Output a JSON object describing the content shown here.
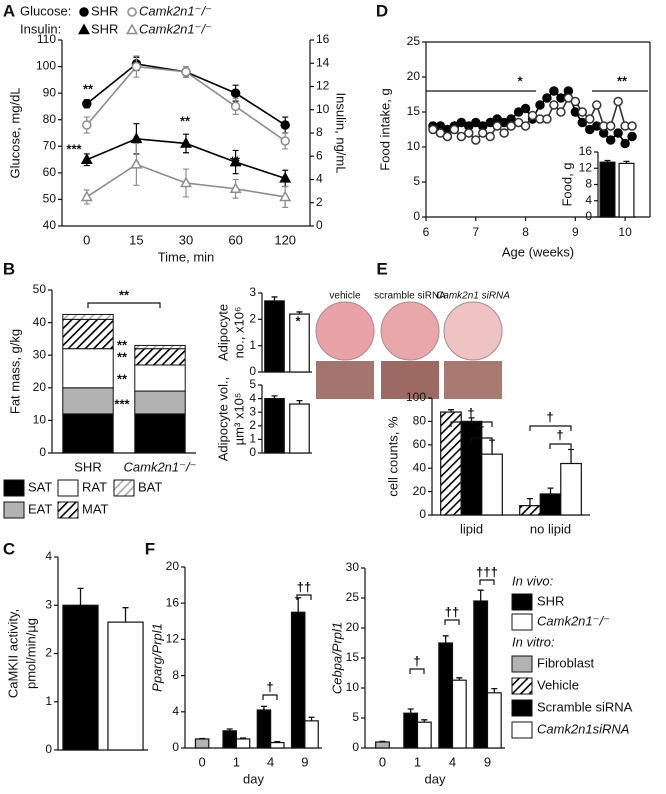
{
  "chart_data": [
    {
      "type": "line",
      "panel": "A",
      "xlabel": "Time, min",
      "ylabel": [
        "Glucose, mg/dL"
      ],
      "y2label": [
        "Insulin, ng/mL"
      ],
      "categories": [
        "0",
        "15",
        "30",
        "60",
        "120"
      ],
      "ylim": [
        40,
        110
      ],
      "yticks": [
        40,
        50,
        60,
        70,
        80,
        90,
        100,
        110
      ],
      "y2lim": [
        0,
        16
      ],
      "y2ticks": [
        0,
        2,
        4,
        6,
        8,
        10,
        12,
        14,
        16
      ],
      "legend_titles": [
        "Glucose:",
        "Insulin:"
      ],
      "series": [
        {
          "name": "SHR",
          "color": "#000000",
          "marker": "circle",
          "fill": "#000000",
          "values": [
            86,
            101,
            98,
            90,
            78
          ],
          "errors": [
            1.5,
            2.5,
            2,
            3,
            3
          ]
        },
        {
          "name": "Camk2n1⁻/⁻",
          "color": "#8c8c8c",
          "marker": "circle",
          "fill": "#ffffff",
          "values": [
            78,
            100,
            98,
            85,
            72
          ],
          "errors": [
            3,
            4,
            2,
            3,
            3
          ]
        },
        {
          "name": "SHR",
          "color": "#000000",
          "marker": "triangle",
          "fill": "#000000",
          "axis": "y2",
          "values": [
            5.7,
            7.5,
            7.1,
            5.5,
            4.1
          ],
          "errors": [
            0.5,
            1.3,
            0.8,
            1,
            0.7
          ]
        },
        {
          "name": "Camk2n1⁻/⁻",
          "color": "#8c8c8c",
          "marker": "triangle",
          "fill": "#ffffff",
          "axis": "y2",
          "values": [
            2.5,
            5.3,
            3.7,
            3.2,
            2.5
          ],
          "errors": [
            0.6,
            1.8,
            1.2,
            0.8,
            0.9
          ]
        }
      ],
      "annotations": [
        "**",
        "***",
        "**",
        "**"
      ]
    },
    {
      "type": "line",
      "panel": "D",
      "xlabel": "Age (weeks)",
      "ylabel": [
        "Food intake, g"
      ],
      "xlim": [
        6,
        10.5
      ],
      "xticks": [
        6,
        7,
        8,
        9,
        10
      ],
      "ylim": [
        0,
        25
      ],
      "yticks": [
        0,
        5,
        10,
        15,
        20,
        25
      ],
      "x": [
        6.14,
        6.29,
        6.43,
        6.57,
        6.71,
        6.86,
        7.0,
        7.14,
        7.29,
        7.43,
        7.57,
        7.71,
        7.86,
        8.0,
        8.14,
        8.29,
        8.43,
        8.57,
        8.71,
        8.86,
        9.0,
        9.14,
        9.29,
        9.43,
        9.57,
        9.71,
        9.86,
        10.0,
        10.14
      ],
      "series": [
        {
          "color": "#000000",
          "marker": "circle",
          "fill": "#000000",
          "values": [
            13,
            13,
            12.5,
            13,
            13.5,
            13,
            13.5,
            13,
            13.5,
            14,
            13.5,
            14,
            15,
            15.5,
            14,
            16,
            17,
            18,
            17,
            18,
            15,
            13.5,
            12.5,
            13,
            12,
            11,
            12,
            10.5,
            11.5
          ]
        },
        {
          "color": "#333333",
          "marker": "circle",
          "fill": "#ffffff",
          "values": [
            12.5,
            12,
            11.5,
            12.5,
            11.5,
            12,
            11,
            12,
            11.5,
            13,
            12,
            13,
            13.5,
            13,
            14.5,
            14,
            14,
            16,
            15,
            17,
            16.5,
            15,
            14,
            16,
            13,
            13,
            16.5,
            13,
            13
          ]
        }
      ],
      "annotations": [
        "*",
        "**"
      ]
    },
    {
      "type": "bar",
      "ylabel": [
        "Food, g"
      ],
      "ylim": [
        0,
        16
      ],
      "yticks": [
        0,
        4,
        8,
        12,
        16
      ],
      "values": [
        13.5,
        13.2
      ],
      "errors": [
        0.4,
        0.5
      ],
      "colors": [
        "#000000",
        "#ffffff"
      ]
    },
    {
      "type": "stacked_bar",
      "panel": "B",
      "ylabel": [
        "Fat mass, g/kg"
      ],
      "categories": [
        "SHR",
        "Camk2n1⁻/⁻"
      ],
      "ylim": [
        0,
        50
      ],
      "yticks": [
        0,
        10,
        20,
        30,
        40,
        50
      ],
      "series": [
        {
          "name": "SAT",
          "color": "#000000",
          "values": [
            12,
            12
          ]
        },
        {
          "name": "EAT",
          "color": "#b3b3b3",
          "values": [
            8,
            7
          ]
        },
        {
          "name": "RAT",
          "color": "#ffffff",
          "values": [
            12,
            8
          ]
        },
        {
          "name": "MAT",
          "color": "#000000",
          "pattern": "hatch",
          "values": [
            9,
            5
          ]
        },
        {
          "name": "BAT",
          "color": "#aaaaaa",
          "pattern": "hatch",
          "values": [
            1.5,
            1
          ]
        }
      ],
      "annotations": [
        "**",
        "**",
        "**",
        "**",
        "***"
      ]
    },
    {
      "type": "bar",
      "ylabel": [
        "Adipocyte",
        "no., x10⁶"
      ],
      "ylim": [
        0,
        3
      ],
      "yticks": [
        0,
        1,
        2,
        3
      ],
      "values": [
        2.7,
        2.2
      ],
      "errors": [
        0.15,
        0.08
      ],
      "colors": [
        "#000000",
        "#ffffff"
      ],
      "annotations": [
        "*"
      ]
    },
    {
      "type": "bar",
      "ylabel": [
        "Adipocyte vol.,",
        "µm³ x10⁵"
      ],
      "ylim": [
        0,
        5
      ],
      "yticks": [
        0,
        1,
        2,
        3,
        4,
        5
      ],
      "values": [
        4.0,
        3.6
      ],
      "errors": [
        0.2,
        0.25
      ],
      "colors": [
        "#000000",
        "#ffffff"
      ]
    },
    {
      "type": "bar",
      "panel": "E",
      "ylabel": [
        "cell counts, %"
      ],
      "categories": [
        "lipid",
        "no lipid"
      ],
      "ylim": [
        0,
        100
      ],
      "yticks": [
        0,
        20,
        40,
        60,
        80,
        100
      ],
      "series": [
        {
          "name": "vehicle",
          "color": "#000000",
          "pattern": "hatch",
          "values": [
            88,
            8
          ],
          "errors": [
            2,
            6
          ]
        },
        {
          "name": "scramble siRNA",
          "color": "#000000",
          "values": [
            80,
            18
          ],
          "errors": [
            3,
            5
          ]
        },
        {
          "name": "Camk2n1 siRNA",
          "color": "#ffffff",
          "values": [
            52,
            44
          ],
          "errors": [
            12,
            12
          ]
        }
      ],
      "annotations": [
        "†",
        "†",
        "†",
        "†"
      ]
    },
    {
      "type": "bar",
      "panel": "C",
      "ylabel": [
        "CaMKII activity,",
        "pmol/min/µg"
      ],
      "ylim": [
        0,
        4
      ],
      "yticks": [
        0,
        1,
        2,
        3,
        4
      ],
      "values": [
        3.0,
        2.65
      ],
      "errors": [
        0.35,
        0.3
      ],
      "colors": [
        "#000000",
        "#ffffff"
      ]
    },
    {
      "type": "bar",
      "panel": "F",
      "ylabel": [
        "Pparg/Prpl1"
      ],
      "xlabel": "day",
      "categories": [
        "0",
        "1",
        "4",
        "9"
      ],
      "ylim": [
        0,
        20
      ],
      "yticks": [
        0,
        4,
        8,
        12,
        16,
        20
      ],
      "series": [
        {
          "color": "#b3b3b3",
          "values": [
            1,
            null,
            null,
            null
          ],
          "errors": [
            0.05,
            null,
            null,
            null
          ]
        },
        {
          "color": "#000000",
          "values": [
            null,
            1.9,
            4.2,
            15
          ],
          "errors": [
            null,
            0.2,
            0.4,
            1.6
          ]
        },
        {
          "color": "#ffffff",
          "values": [
            null,
            1.0,
            0.6,
            3.0
          ],
          "errors": [
            null,
            0.1,
            0.1,
            0.4
          ]
        }
      ],
      "annotations": [
        "†",
        "††"
      ]
    },
    {
      "type": "bar",
      "ylabel": [
        "Cebpa/Prpl1"
      ],
      "xlabel": "day",
      "categories": [
        "0",
        "1",
        "4",
        "9"
      ],
      "ylim": [
        0,
        30
      ],
      "yticks": [
        0,
        5,
        10,
        15,
        20,
        25,
        30
      ],
      "series": [
        {
          "color": "#b3b3b3",
          "values": [
            1,
            null,
            null,
            null
          ],
          "errors": [
            0.1,
            null,
            null,
            null
          ]
        },
        {
          "color": "#000000",
          "values": [
            null,
            5.8,
            17.5,
            24.5
          ],
          "errors": [
            null,
            0.7,
            1.2,
            1.8
          ]
        },
        {
          "color": "#ffffff",
          "values": [
            null,
            4.3,
            11.3,
            9.2
          ],
          "errors": [
            null,
            0.4,
            0.4,
            0.7
          ]
        }
      ],
      "annotations": [
        "†",
        "††",
        "†††"
      ],
      "legend_groups": [
        {
          "title": "In vivo:",
          "items": [
            {
              "name": "SHR",
              "color": "#000000"
            },
            {
              "name": "Camk2n1⁻/⁻",
              "color": "#ffffff"
            }
          ]
        },
        {
          "title": "In vitro:",
          "items": [
            {
              "name": "Fibroblast",
              "color": "#b3b3b3"
            },
            {
              "name": "Vehicle",
              "color": "#000000",
              "pattern": "hatch"
            },
            {
              "name": "Scramble siRNA",
              "color": "#000000"
            },
            {
              "name": "Camk2n1siRNA",
              "color": "#ffffff"
            }
          ]
        }
      ]
    }
  ]
}
